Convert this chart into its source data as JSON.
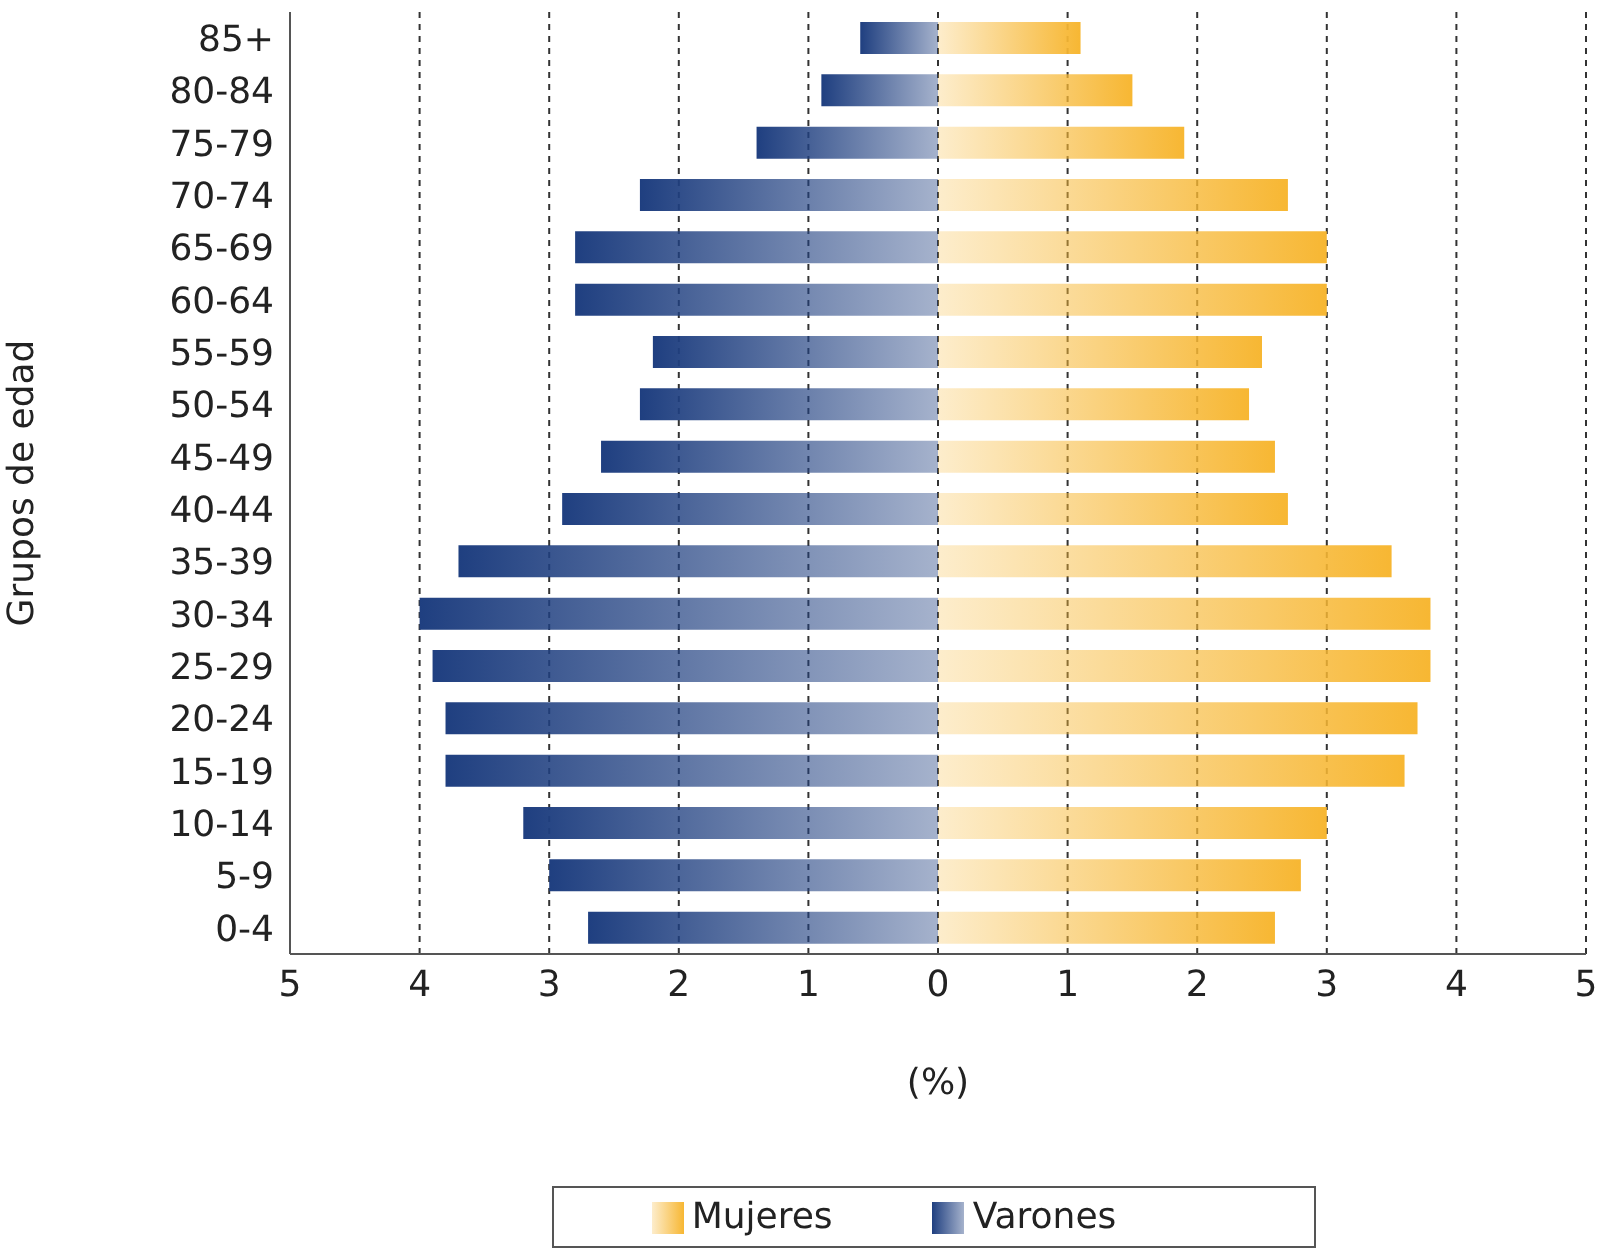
{
  "chart_data": {
    "type": "bar",
    "orientation": "horizontal",
    "stacked": true,
    "xlabel": "(%)",
    "ylabel": "Grupos de edad",
    "categories": [
      "85+",
      "80-84",
      "75-79",
      "70-74",
      "65-69",
      "60-64",
      "55-59",
      "50-54",
      "45-49",
      "40-44",
      "35-39",
      "30-34",
      "25-29",
      "20-24",
      "15-19",
      "10-14",
      "5-9",
      "0-4"
    ],
    "series": [
      {
        "name": "Varones",
        "color": "#1f3f80",
        "values": [
          -0.6,
          -0.9,
          -1.4,
          -2.3,
          -2.8,
          -2.8,
          -2.2,
          -2.3,
          -2.6,
          -2.9,
          -3.7,
          -4.0,
          -3.9,
          -3.8,
          -3.8,
          -3.2,
          -3.0,
          -2.7
        ]
      },
      {
        "name": "Mujeres",
        "color": "#f7b733",
        "values": [
          1.1,
          1.5,
          1.9,
          2.7,
          3.0,
          3.0,
          2.5,
          2.4,
          2.6,
          2.7,
          3.5,
          3.8,
          3.8,
          3.7,
          3.6,
          3.0,
          2.8,
          2.6
        ]
      }
    ],
    "xlim": [
      -5,
      5
    ],
    "xticks": [
      {
        "value": -5,
        "label": "5"
      },
      {
        "value": -4,
        "label": "4"
      },
      {
        "value": -3,
        "label": "3"
      },
      {
        "value": -2,
        "label": "2"
      },
      {
        "value": -1,
        "label": "1"
      },
      0,
      1,
      2,
      3,
      4,
      5
    ],
    "grid": "x",
    "legend": "bottom"
  }
}
